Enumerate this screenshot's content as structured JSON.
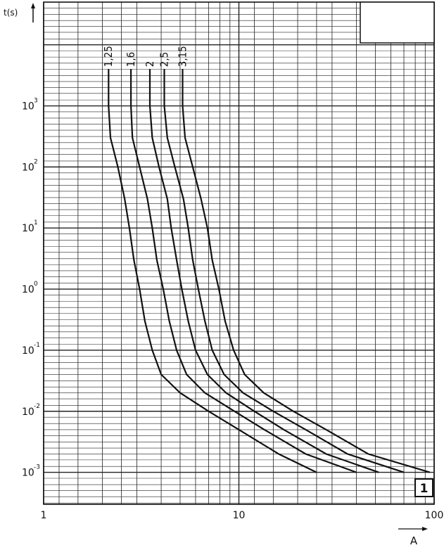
{
  "chart_data": {
    "type": "line",
    "xscale": "log",
    "yscale": "log",
    "xlim": [
      1,
      100
    ],
    "ylim": [
      0.0003,
      50000
    ],
    "x_tick_labels": [
      "1",
      "10",
      "100"
    ],
    "y_tick_labels": [
      {
        "base": "10",
        "exp": "3",
        "value": 1000
      },
      {
        "base": "10",
        "exp": "2",
        "value": 100
      },
      {
        "base": "10",
        "exp": "1",
        "value": 10
      },
      {
        "base": "10",
        "exp": "0",
        "value": 1
      },
      {
        "base": "10",
        "exp": "-1",
        "value": 0.1
      },
      {
        "base": "10",
        "exp": "-2",
        "value": 0.01
      },
      {
        "base": "10",
        "exp": "-3",
        "value": 0.001
      }
    ],
    "xlabel": "A",
    "ylabel": "t(s)",
    "badge": "1",
    "grid": true,
    "series": [
      {
        "name": "1,25",
        "points": [
          [
            2.15,
            4000
          ],
          [
            2.15,
            1000
          ],
          [
            2.2,
            300
          ],
          [
            2.4,
            100
          ],
          [
            2.6,
            30
          ],
          [
            2.75,
            10
          ],
          [
            2.9,
            3
          ],
          [
            3.1,
            1
          ],
          [
            3.3,
            0.3
          ],
          [
            3.6,
            0.1
          ],
          [
            4,
            0.04
          ],
          [
            5,
            0.02
          ],
          [
            7,
            0.01
          ],
          [
            10,
            0.005
          ],
          [
            16,
            0.002
          ],
          [
            25,
            0.001
          ]
        ]
      },
      {
        "name": "1,6",
        "points": [
          [
            2.8,
            4000
          ],
          [
            2.8,
            1000
          ],
          [
            2.85,
            300
          ],
          [
            3.1,
            100
          ],
          [
            3.4,
            30
          ],
          [
            3.6,
            10
          ],
          [
            3.8,
            3
          ],
          [
            4.1,
            1
          ],
          [
            4.4,
            0.3
          ],
          [
            4.8,
            0.1
          ],
          [
            5.4,
            0.04
          ],
          [
            6.7,
            0.02
          ],
          [
            9.5,
            0.01
          ],
          [
            13.5,
            0.005
          ],
          [
            22,
            0.002
          ],
          [
            40,
            0.001
          ]
        ]
      },
      {
        "name": "2",
        "points": [
          [
            3.5,
            4000
          ],
          [
            3.5,
            1000
          ],
          [
            3.6,
            300
          ],
          [
            3.9,
            100
          ],
          [
            4.3,
            30
          ],
          [
            4.5,
            10
          ],
          [
            4.8,
            3
          ],
          [
            5.1,
            1
          ],
          [
            5.5,
            0.3
          ],
          [
            6,
            0.1
          ],
          [
            6.9,
            0.04
          ],
          [
            8.6,
            0.02
          ],
          [
            12,
            0.01
          ],
          [
            17,
            0.005
          ],
          [
            28,
            0.002
          ],
          [
            52,
            0.001
          ]
        ]
      },
      {
        "name": "2,5",
        "points": [
          [
            4.15,
            4000
          ],
          [
            4.15,
            1000
          ],
          [
            4.3,
            300
          ],
          [
            4.7,
            100
          ],
          [
            5.2,
            30
          ],
          [
            5.5,
            10
          ],
          [
            5.8,
            3
          ],
          [
            6.2,
            1
          ],
          [
            6.7,
            0.3
          ],
          [
            7.3,
            0.1
          ],
          [
            8.4,
            0.04
          ],
          [
            10.5,
            0.02
          ],
          [
            15,
            0.01
          ],
          [
            22,
            0.005
          ],
          [
            36,
            0.002
          ],
          [
            70,
            0.001
          ]
        ]
      },
      {
        "name": "3,15",
        "points": [
          [
            5.15,
            4000
          ],
          [
            5.15,
            1000
          ],
          [
            5.3,
            300
          ],
          [
            5.8,
            100
          ],
          [
            6.4,
            30
          ],
          [
            6.9,
            10
          ],
          [
            7.3,
            3
          ],
          [
            7.9,
            1
          ],
          [
            8.5,
            0.3
          ],
          [
            9.4,
            0.1
          ],
          [
            10.7,
            0.04
          ],
          [
            13.4,
            0.02
          ],
          [
            19,
            0.01
          ],
          [
            28,
            0.005
          ],
          [
            46,
            0.002
          ],
          [
            95,
            0.001
          ]
        ]
      }
    ]
  }
}
